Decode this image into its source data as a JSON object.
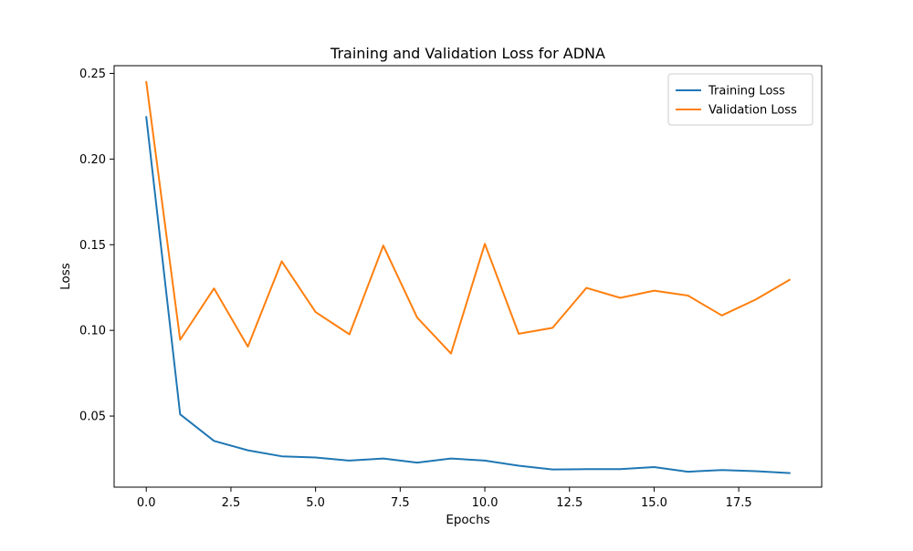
{
  "chart_data": {
    "type": "line",
    "title": "Training and Validation Loss for ADNA",
    "xlabel": "Epochs",
    "ylabel": "Loss",
    "xlim": [
      -0.95,
      19.95
    ],
    "ylim": [
      0.0085,
      0.2545
    ],
    "xticks": [
      0.0,
      2.5,
      5.0,
      7.5,
      10.0,
      12.5,
      15.0,
      17.5
    ],
    "xtick_labels": [
      "0.0",
      "2.5",
      "5.0",
      "7.5",
      "10.0",
      "12.5",
      "15.0",
      "17.5"
    ],
    "yticks": [
      0.05,
      0.1,
      0.15,
      0.2,
      0.25
    ],
    "ytick_labels": [
      "0.05",
      "0.10",
      "0.15",
      "0.20",
      "0.25"
    ],
    "grid": false,
    "legend_position": "top-right",
    "x": [
      0,
      1,
      2,
      3,
      4,
      5,
      6,
      7,
      8,
      9,
      10,
      11,
      12,
      13,
      14,
      15,
      16,
      17,
      18,
      19
    ],
    "series": [
      {
        "name": "Training Loss",
        "color": "#1f77b4",
        "values": [
          0.2245,
          0.051,
          0.0355,
          0.03,
          0.0265,
          0.0258,
          0.024,
          0.0252,
          0.0228,
          0.0252,
          0.024,
          0.021,
          0.0188,
          0.019,
          0.019,
          0.0202,
          0.0175,
          0.0185,
          0.0178,
          0.0167
        ]
      },
      {
        "name": "Validation Loss",
        "color": "#ff7f0e",
        "values": [
          0.245,
          0.0945,
          0.1245,
          0.0905,
          0.1403,
          0.1107,
          0.0977,
          0.1495,
          0.1075,
          0.0865,
          0.1505,
          0.098,
          0.1015,
          0.1248,
          0.119,
          0.1232,
          0.1203,
          0.1087,
          0.118,
          0.1295
        ]
      }
    ]
  }
}
